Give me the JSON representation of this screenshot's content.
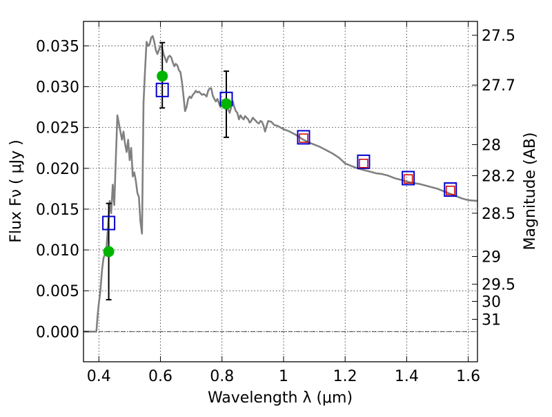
{
  "chart_data": {
    "type": "scatter",
    "xlabel": "Wavelength  λ (μm)",
    "ylabel": "Flux  Fν  ( μJy )",
    "y2label": "Magnitude (AB)",
    "xlim": [
      0.35,
      1.63
    ],
    "ylim": [
      -0.0037,
      0.038
    ],
    "grid": true,
    "x_ticks": [
      0.4,
      0.6,
      0.8,
      1.0,
      1.2,
      1.4,
      1.6
    ],
    "x_tick_labels": [
      "0.4",
      "0.6",
      "0.8",
      "1",
      "1.2",
      "1.4",
      "1.6"
    ],
    "y_ticks": [
      0.0,
      0.005,
      0.01,
      0.015,
      0.02,
      0.025,
      0.03,
      0.035
    ],
    "y_tick_labels": [
      "0.000",
      "0.005",
      "0.010",
      "0.015",
      "0.020",
      "0.025",
      "0.030",
      "0.035"
    ],
    "magnitude_ticks": [
      {
        "label": "27.5",
        "flux": 0.0363
      },
      {
        "label": "27.7",
        "flux": 0.0302
      },
      {
        "label": "28",
        "flux": 0.0229
      },
      {
        "label": "28.2",
        "flux": 0.0191
      },
      {
        "label": "28.5",
        "flux": 0.0145
      },
      {
        "label": "29",
        "flux": 0.0092
      },
      {
        "label": "29.5",
        "flux": 0.0058
      },
      {
        "label": "30",
        "flux": 0.0037
      },
      {
        "label": "31",
        "flux": 0.0015
      }
    ],
    "series": [
      {
        "type": "line",
        "color": "#808080",
        "x": [
          0.35,
          0.392,
          0.396,
          0.4,
          0.405,
          0.41,
          0.415,
          0.42,
          0.425,
          0.43,
          0.435,
          0.44,
          0.445,
          0.45,
          0.455,
          0.46,
          0.465,
          0.47,
          0.475,
          0.48,
          0.485,
          0.49,
          0.495,
          0.5,
          0.505,
          0.51,
          0.515,
          0.52,
          0.525,
          0.53,
          0.535,
          0.54,
          0.545,
          0.55,
          0.555,
          0.56,
          0.565,
          0.57,
          0.575,
          0.58,
          0.585,
          0.59,
          0.595,
          0.6,
          0.605,
          0.61,
          0.615,
          0.62,
          0.625,
          0.63,
          0.635,
          0.64,
          0.645,
          0.65,
          0.655,
          0.66,
          0.665,
          0.67,
          0.675,
          0.68,
          0.685,
          0.69,
          0.695,
          0.7,
          0.705,
          0.71,
          0.715,
          0.72,
          0.725,
          0.73,
          0.735,
          0.74,
          0.745,
          0.75,
          0.755,
          0.76,
          0.765,
          0.77,
          0.775,
          0.78,
          0.785,
          0.79,
          0.795,
          0.8,
          0.805,
          0.81,
          0.815,
          0.82,
          0.825,
          0.83,
          0.835,
          0.84,
          0.845,
          0.85,
          0.855,
          0.86,
          0.865,
          0.87,
          0.875,
          0.88,
          0.885,
          0.89,
          0.895,
          0.9,
          0.905,
          0.91,
          0.915,
          0.92,
          0.925,
          0.93,
          0.935,
          0.94,
          0.945,
          0.95,
          0.96,
          0.97,
          0.98,
          0.99,
          1.0,
          1.02,
          1.04,
          1.06,
          1.08,
          1.1,
          1.12,
          1.14,
          1.16,
          1.18,
          1.2,
          1.22,
          1.24,
          1.26,
          1.28,
          1.3,
          1.32,
          1.34,
          1.36,
          1.38,
          1.4,
          1.42,
          1.44,
          1.46,
          1.48,
          1.5,
          1.52,
          1.54,
          1.56,
          1.58,
          1.6,
          1.63
        ],
        "y": [
          0.0,
          0.0,
          0.002,
          0.0035,
          0.005,
          0.0075,
          0.009,
          0.0095,
          0.0105,
          0.013,
          0.016,
          0.0145,
          0.018,
          0.0155,
          0.021,
          0.0265,
          0.0255,
          0.0245,
          0.0235,
          0.0245,
          0.023,
          0.022,
          0.0235,
          0.021,
          0.0225,
          0.019,
          0.0195,
          0.0185,
          0.017,
          0.0165,
          0.0135,
          0.012,
          0.028,
          0.032,
          0.0355,
          0.035,
          0.0352,
          0.036,
          0.0362,
          0.0355,
          0.0345,
          0.034,
          0.0345,
          0.035,
          0.0348,
          0.034,
          0.0335,
          0.033,
          0.0336,
          0.0338,
          0.0336,
          0.033,
          0.0325,
          0.0328,
          0.0326,
          0.032,
          0.0318,
          0.0305,
          0.0288,
          0.027,
          0.0275,
          0.0285,
          0.0288,
          0.0286,
          0.029,
          0.0292,
          0.0295,
          0.0293,
          0.0294,
          0.0292,
          0.029,
          0.0291,
          0.029,
          0.0288,
          0.0295,
          0.0298,
          0.0298,
          0.0289,
          0.0285,
          0.0282,
          0.0285,
          0.028,
          0.0275,
          0.0278,
          0.0282,
          0.028,
          0.0275,
          0.0272,
          0.0268,
          0.0275,
          0.0282,
          0.0275,
          0.027,
          0.0268,
          0.026,
          0.0265,
          0.0262,
          0.026,
          0.0264,
          0.0262,
          0.026,
          0.0256,
          0.0258,
          0.0262,
          0.026,
          0.0258,
          0.0256,
          0.0255,
          0.0258,
          0.0257,
          0.0252,
          0.0245,
          0.0252,
          0.0258,
          0.0257,
          0.0253,
          0.0252,
          0.025,
          0.0248,
          0.0245,
          0.0241,
          0.0236,
          0.0232,
          0.0229,
          0.0226,
          0.0222,
          0.0218,
          0.0213,
          0.0206,
          0.0203,
          0.02,
          0.0198,
          0.0196,
          0.0194,
          0.0193,
          0.0191,
          0.0188,
          0.0186,
          0.0184,
          0.0182,
          0.0181,
          0.0179,
          0.0177,
          0.0175,
          0.0172,
          0.0169,
          0.0166,
          0.0163,
          0.0161,
          0.016
        ]
      },
      {
        "type": "scatter",
        "marker": "square",
        "color": "#0000cc",
        "x": [
          0.432,
          0.606,
          0.814,
          1.065,
          1.26,
          1.405,
          1.542
        ],
        "y": [
          0.0133,
          0.0296,
          0.0285,
          0.0238,
          0.0208,
          0.0188,
          0.0174
        ]
      },
      {
        "type": "scatter",
        "marker": "square",
        "color": "#cc0000",
        "x": [
          1.065,
          1.26,
          1.405,
          1.542
        ],
        "y": [
          0.0237,
          0.0206,
          0.0187,
          0.0173
        ]
      },
      {
        "type": "scatter",
        "marker": "circle",
        "color": "#00b400",
        "x": [
          0.432,
          0.606,
          0.814
        ],
        "y": [
          0.0098,
          0.0313,
          0.0279
        ]
      }
    ],
    "errorbars": [
      {
        "x": 0.432,
        "low": 0.0039,
        "high": 0.0157
      },
      {
        "x": 0.606,
        "low": 0.0274,
        "high": 0.0354
      },
      {
        "x": 0.814,
        "low": 0.0238,
        "high": 0.0319
      }
    ]
  }
}
